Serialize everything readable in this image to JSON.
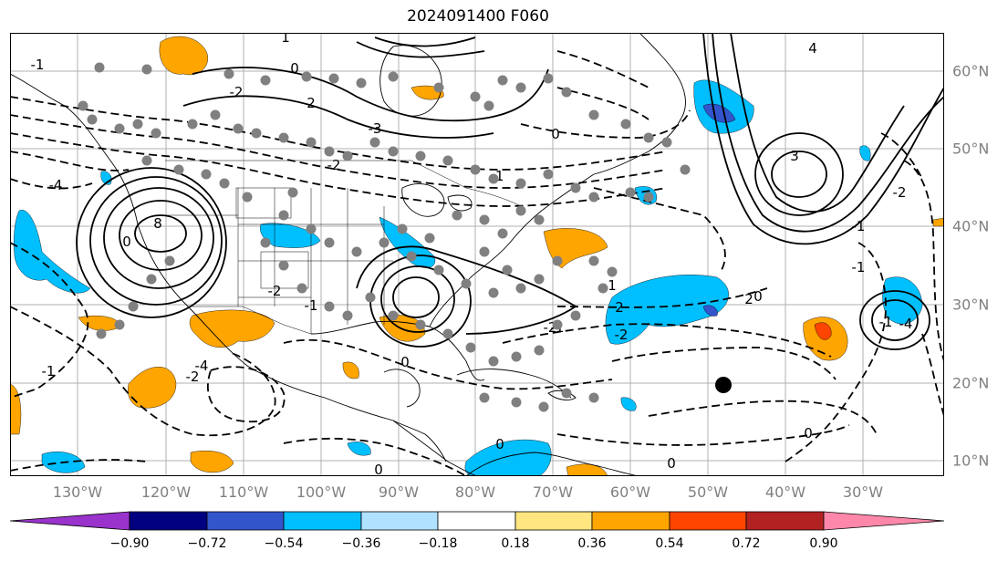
{
  "title": "2024091400 F060",
  "lon_ticks": [
    "130°W",
    "120°W",
    "110°W",
    "100°W",
    "90°W",
    "80°W",
    "70°W",
    "60°W",
    "50°W",
    "40°W",
    "30°W"
  ],
  "lat_ticks": [
    "60°N",
    "50°N",
    "40°N",
    "30°N",
    "20°N",
    "10°N"
  ],
  "colorbar": {
    "ticks": [
      "−0.90",
      "−0.72",
      "−0.54",
      "−0.36",
      "−0.18",
      "0.18",
      "0.36",
      "0.54",
      "0.72",
      "0.90"
    ],
    "colors": [
      "#9933cc",
      "#000080",
      "#3355cc",
      "#00bfff",
      "#b0e2ff",
      "#ffffff",
      "#ffe680",
      "#ffa500",
      "#ff4500",
      "#b22222",
      "#ff88aa"
    ]
  },
  "contour_labels": [
    "1",
    "-1",
    "0",
    "-2",
    "2",
    "-3",
    "3",
    "4",
    "-4",
    "8",
    "0",
    "-1",
    "-2",
    "0",
    "-2",
    "-1",
    "-2",
    "-4",
    "-1",
    "0",
    "-2",
    "2",
    "-2",
    "-1",
    "0",
    "-1",
    "-4",
    "-2",
    "-1",
    "0",
    "0",
    "0",
    "0",
    "-1",
    "1",
    "2"
  ],
  "colors": {
    "orange": "#ffa500",
    "red": "#ff4500",
    "deepskyblue": "#00bfff",
    "blue": "#3355cc",
    "grid": "#b0b0b0",
    "tick_label": "#808080",
    "dots": "#808080"
  }
}
